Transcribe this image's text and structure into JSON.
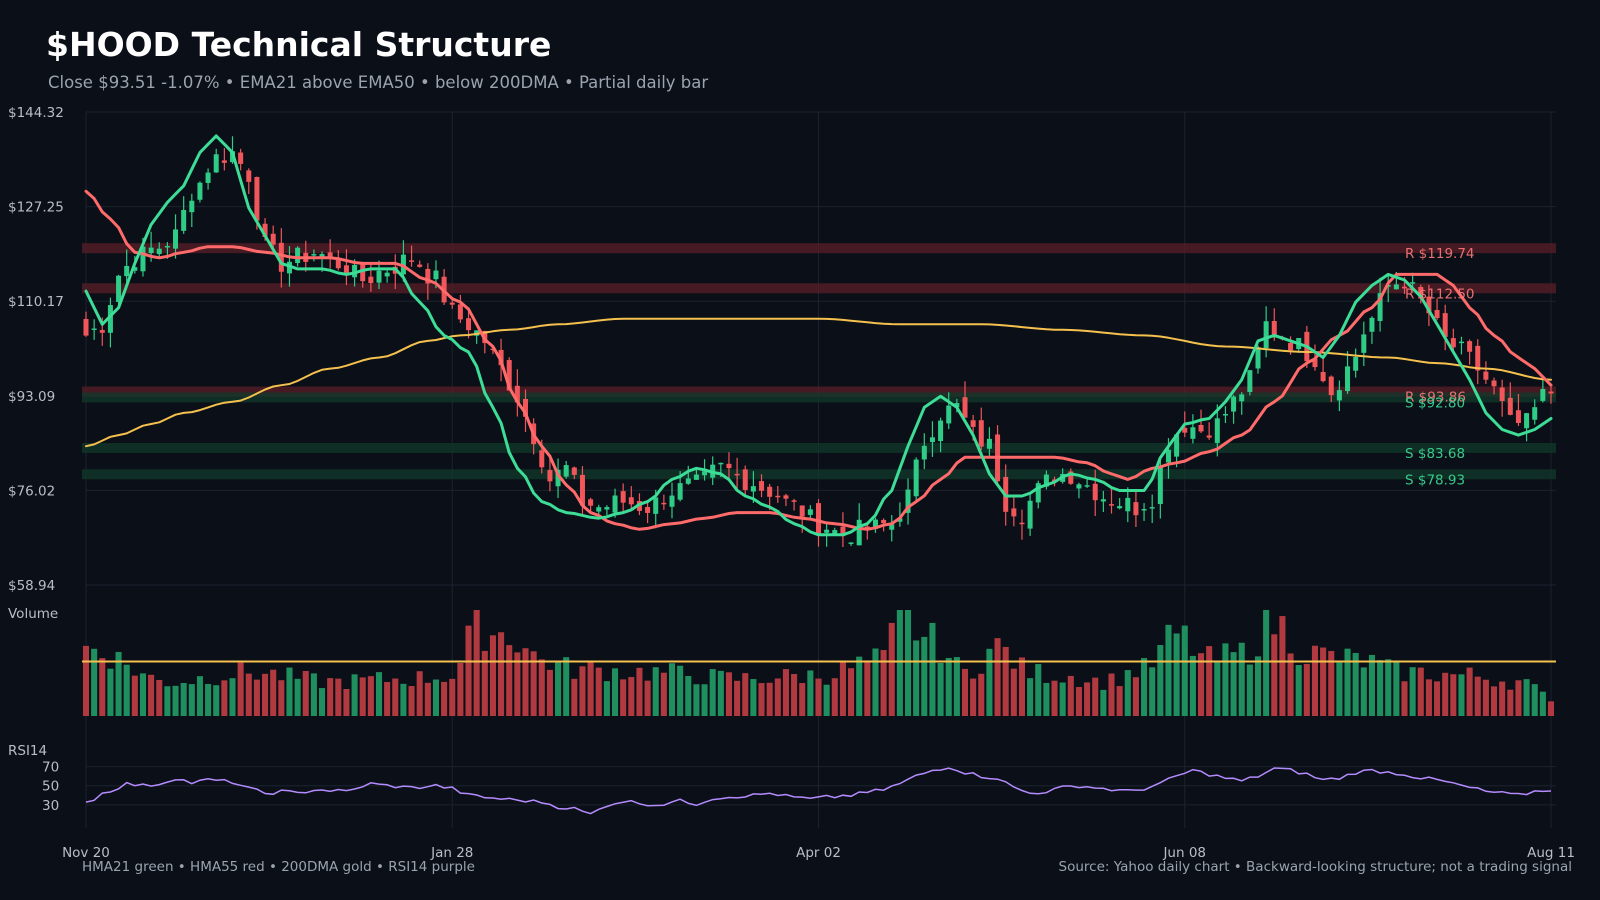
{
  "header": {
    "title": "$HOOD Technical Structure",
    "subtitle": "Close $93.51  -1.07%  •  EMA21 above EMA50 • below 200DMA  •  Partial daily bar"
  },
  "footer": {
    "legend_text": "HMA21 green • HMA55 red • 200DMA gold  •  RSI14 purple",
    "source_text": "Source: Yahoo daily chart • Backward-looking structure; not a trading signal"
  },
  "colors": {
    "background": "#0b0f17",
    "up": "#2ecc87",
    "down": "#f0565a",
    "hma21": "#3ddc97",
    "hma55": "#ff6b6b",
    "dma200": "#f5c14e",
    "rsi": "#b48cff",
    "resistance": "#ff7a7a",
    "support": "#3ddc97",
    "grid": "#1c2230"
  },
  "chart_data": {
    "type": "candlestick",
    "price_axis": {
      "ticks": [
        144.32,
        127.25,
        110.17,
        93.09,
        76.02,
        58.94
      ],
      "tick_labels": [
        "$144.32",
        "$127.25",
        "$110.17",
        "$93.09",
        "$76.02",
        "$58.94"
      ],
      "range": [
        58.94,
        144.32
      ]
    },
    "x_axis": {
      "tick_labels": [
        "Nov 20",
        "Jan 28",
        "Apr 02",
        "Jun 08",
        "Aug 11"
      ],
      "tick_indices": [
        0,
        45,
        90,
        135,
        180
      ],
      "count": 181
    },
    "volume_panel": {
      "label": "Volume"
    },
    "rsi_panel": {
      "label": "RSI14",
      "ticks": [
        70,
        50,
        30
      ],
      "range": [
        10,
        80
      ]
    },
    "levels": [
      {
        "kind": "resistance",
        "price": 119.74,
        "label": "R $119.74"
      },
      {
        "kind": "resistance",
        "price": 112.5,
        "label": "R $112.50"
      },
      {
        "kind": "resistance",
        "price": 93.86,
        "label": "R $93.86"
      },
      {
        "kind": "support",
        "price": 92.8,
        "label": "S $92.80"
      },
      {
        "kind": "support",
        "price": 83.68,
        "label": "S $83.68"
      },
      {
        "kind": "support",
        "price": 78.93,
        "label": "S $78.93"
      }
    ],
    "close_anchors": [
      [
        0,
        104
      ],
      [
        2,
        106
      ],
      [
        4,
        115
      ],
      [
        6,
        118
      ],
      [
        9,
        120
      ],
      [
        11,
        122
      ],
      [
        13,
        130
      ],
      [
        16,
        136
      ],
      [
        18,
        137
      ],
      [
        20,
        133
      ],
      [
        22,
        120
      ],
      [
        24,
        117
      ],
      [
        26,
        118
      ],
      [
        28,
        119
      ],
      [
        31,
        117
      ],
      [
        34,
        114
      ],
      [
        37,
        116
      ],
      [
        40,
        118
      ],
      [
        43,
        114
      ],
      [
        45,
        108
      ],
      [
        47,
        106
      ],
      [
        49,
        103
      ],
      [
        51,
        98
      ],
      [
        53,
        93
      ],
      [
        55,
        86
      ],
      [
        57,
        78
      ],
      [
        59,
        80
      ],
      [
        61,
        74
      ],
      [
        63,
        73
      ],
      [
        66,
        74
      ],
      [
        69,
        73
      ],
      [
        72,
        76
      ],
      [
        75,
        77
      ],
      [
        78,
        80
      ],
      [
        81,
        78
      ],
      [
        84,
        76
      ],
      [
        87,
        73
      ],
      [
        90,
        70
      ],
      [
        93,
        68
      ],
      [
        96,
        69
      ],
      [
        99,
        70
      ],
      [
        101,
        75
      ],
      [
        103,
        85
      ],
      [
        105,
        90
      ],
      [
        107,
        91
      ],
      [
        109,
        86
      ],
      [
        111,
        84
      ],
      [
        113,
        74
      ],
      [
        115,
        72
      ],
      [
        117,
        76
      ],
      [
        119,
        79
      ],
      [
        121,
        79
      ],
      [
        123,
        77
      ],
      [
        125,
        75
      ],
      [
        127,
        74
      ],
      [
        129,
        73
      ],
      [
        131,
        75
      ],
      [
        133,
        85
      ],
      [
        135,
        88
      ],
      [
        137,
        87
      ],
      [
        139,
        88
      ],
      [
        141,
        92
      ],
      [
        143,
        96
      ],
      [
        145,
        106
      ],
      [
        147,
        104
      ],
      [
        149,
        102
      ],
      [
        151,
        100
      ],
      [
        153,
        94
      ],
      [
        155,
        98
      ],
      [
        158,
        107
      ],
      [
        160,
        113
      ],
      [
        162,
        114
      ],
      [
        163,
        112
      ],
      [
        165,
        108
      ],
      [
        167,
        103
      ],
      [
        169,
        101
      ],
      [
        171,
        98
      ],
      [
        173,
        94
      ],
      [
        175,
        88
      ],
      [
        177,
        88
      ],
      [
        179,
        93
      ],
      [
        180,
        93.51
      ]
    ],
    "hma21_anchors": [
      [
        0,
        112
      ],
      [
        2,
        106
      ],
      [
        4,
        109
      ],
      [
        6,
        117
      ],
      [
        8,
        124
      ],
      [
        10,
        128
      ],
      [
        12,
        131
      ],
      [
        14,
        137
      ],
      [
        16,
        140
      ],
      [
        18,
        137
      ],
      [
        20,
        127
      ],
      [
        22,
        122
      ],
      [
        24,
        117
      ],
      [
        26,
        116
      ],
      [
        29,
        116
      ],
      [
        32,
        115
      ],
      [
        35,
        116
      ],
      [
        38,
        116
      ],
      [
        41,
        110
      ],
      [
        44,
        104
      ],
      [
        47,
        101
      ],
      [
        50,
        91
      ],
      [
        53,
        80
      ],
      [
        56,
        74
      ],
      [
        59,
        72
      ],
      [
        63,
        71
      ],
      [
        66,
        72
      ],
      [
        69,
        74
      ],
      [
        72,
        78
      ],
      [
        75,
        80
      ],
      [
        78,
        79
      ],
      [
        81,
        75
      ],
      [
        84,
        73
      ],
      [
        87,
        70
      ],
      [
        90,
        68
      ],
      [
        93,
        68
      ],
      [
        96,
        70
      ],
      [
        99,
        76
      ],
      [
        101,
        84
      ],
      [
        103,
        91
      ],
      [
        105,
        93
      ],
      [
        107,
        91
      ],
      [
        109,
        86
      ],
      [
        111,
        79
      ],
      [
        113,
        75
      ],
      [
        115,
        75
      ],
      [
        118,
        77
      ],
      [
        121,
        79
      ],
      [
        124,
        78
      ],
      [
        127,
        76
      ],
      [
        130,
        76
      ],
      [
        133,
        84
      ],
      [
        135,
        88
      ],
      [
        138,
        89
      ],
      [
        140,
        92
      ],
      [
        142,
        96
      ],
      [
        144,
        103
      ],
      [
        146,
        104
      ],
      [
        148,
        103
      ],
      [
        150,
        102
      ],
      [
        152,
        100
      ],
      [
        154,
        104
      ],
      [
        156,
        110
      ],
      [
        158,
        113
      ],
      [
        160,
        115
      ],
      [
        162,
        114
      ],
      [
        164,
        111
      ],
      [
        166,
        106
      ],
      [
        168,
        101
      ],
      [
        170,
        96
      ],
      [
        172,
        90
      ],
      [
        174,
        87
      ],
      [
        176,
        86
      ],
      [
        178,
        87
      ],
      [
        180,
        89
      ]
    ],
    "hma55_anchors": [
      [
        0,
        130
      ],
      [
        3,
        125
      ],
      [
        6,
        119
      ],
      [
        9,
        118
      ],
      [
        12,
        119
      ],
      [
        15,
        120
      ],
      [
        18,
        120
      ],
      [
        22,
        119
      ],
      [
        26,
        118
      ],
      [
        30,
        118
      ],
      [
        34,
        117
      ],
      [
        38,
        117
      ],
      [
        42,
        114
      ],
      [
        46,
        110
      ],
      [
        50,
        102
      ],
      [
        53,
        92
      ],
      [
        56,
        84
      ],
      [
        59,
        77
      ],
      [
        62,
        72
      ],
      [
        65,
        70
      ],
      [
        68,
        69
      ],
      [
        72,
        70
      ],
      [
        76,
        71
      ],
      [
        80,
        72
      ],
      [
        84,
        72
      ],
      [
        88,
        71
      ],
      [
        92,
        70
      ],
      [
        96,
        69
      ],
      [
        99,
        70
      ],
      [
        102,
        74
      ],
      [
        105,
        78
      ],
      [
        108,
        82
      ],
      [
        111,
        82
      ],
      [
        115,
        82
      ],
      [
        119,
        82
      ],
      [
        123,
        81
      ],
      [
        126,
        79
      ],
      [
        128,
        78
      ],
      [
        131,
        80
      ],
      [
        134,
        81
      ],
      [
        138,
        83
      ],
      [
        142,
        86
      ],
      [
        146,
        92
      ],
      [
        150,
        99
      ],
      [
        154,
        104
      ],
      [
        158,
        109
      ],
      [
        161,
        115
      ],
      [
        164,
        115
      ],
      [
        166,
        115
      ],
      [
        168,
        113
      ],
      [
        170,
        109
      ],
      [
        173,
        104
      ],
      [
        176,
        100
      ],
      [
        178,
        98
      ],
      [
        180,
        95
      ]
    ],
    "dma200_anchors": [
      [
        0,
        84
      ],
      [
        4,
        86
      ],
      [
        8,
        88
      ],
      [
        12,
        90
      ],
      [
        18,
        92
      ],
      [
        24,
        95
      ],
      [
        30,
        98
      ],
      [
        36,
        100
      ],
      [
        42,
        103
      ],
      [
        46,
        104
      ],
      [
        52,
        105
      ],
      [
        58,
        106
      ],
      [
        66,
        107
      ],
      [
        74,
        107
      ],
      [
        82,
        107
      ],
      [
        90,
        107
      ],
      [
        100,
        106
      ],
      [
        110,
        106
      ],
      [
        120,
        105
      ],
      [
        130,
        104
      ],
      [
        140,
        102
      ],
      [
        150,
        101
      ],
      [
        160,
        100
      ],
      [
        166,
        99
      ],
      [
        172,
        98
      ],
      [
        180,
        96
      ]
    ],
    "rsi_anchors": [
      [
        0,
        33
      ],
      [
        3,
        45
      ],
      [
        5,
        52
      ],
      [
        7,
        50
      ],
      [
        9,
        52
      ],
      [
        11,
        58
      ],
      [
        13,
        53
      ],
      [
        15,
        56
      ],
      [
        18,
        54
      ],
      [
        20,
        47
      ],
      [
        22,
        42
      ],
      [
        24,
        44
      ],
      [
        26,
        42
      ],
      [
        28,
        46
      ],
      [
        30,
        45
      ],
      [
        32,
        44
      ],
      [
        35,
        52
      ],
      [
        37,
        50
      ],
      [
        40,
        48
      ],
      [
        43,
        50
      ],
      [
        45,
        47
      ],
      [
        47,
        40
      ],
      [
        50,
        37
      ],
      [
        53,
        35
      ],
      [
        56,
        33
      ],
      [
        58,
        28
      ],
      [
        60,
        26
      ],
      [
        62,
        20
      ],
      [
        64,
        30
      ],
      [
        66,
        34
      ],
      [
        68,
        32
      ],
      [
        70,
        30
      ],
      [
        73,
        34
      ],
      [
        75,
        31
      ],
      [
        77,
        37
      ],
      [
        80,
        39
      ],
      [
        82,
        40
      ],
      [
        84,
        42
      ],
      [
        87,
        38
      ],
      [
        89,
        36
      ],
      [
        91,
        38
      ],
      [
        94,
        40
      ],
      [
        96,
        43
      ],
      [
        98,
        46
      ],
      [
        100,
        52
      ],
      [
        102,
        60
      ],
      [
        104,
        66
      ],
      [
        106,
        70
      ],
      [
        108,
        64
      ],
      [
        110,
        60
      ],
      [
        112,
        58
      ],
      [
        114,
        48
      ],
      [
        116,
        42
      ],
      [
        118,
        44
      ],
      [
        120,
        48
      ],
      [
        122,
        50
      ],
      [
        124,
        48
      ],
      [
        126,
        46
      ],
      [
        128,
        44
      ],
      [
        130,
        47
      ],
      [
        132,
        52
      ],
      [
        134,
        60
      ],
      [
        136,
        66
      ],
      [
        138,
        62
      ],
      [
        140,
        58
      ],
      [
        142,
        55
      ],
      [
        144,
        60
      ],
      [
        146,
        68
      ],
      [
        148,
        66
      ],
      [
        150,
        62
      ],
      [
        152,
        56
      ],
      [
        154,
        58
      ],
      [
        156,
        64
      ],
      [
        158,
        66
      ],
      [
        160,
        64
      ],
      [
        162,
        62
      ],
      [
        164,
        58
      ],
      [
        166,
        56
      ],
      [
        168,
        52
      ],
      [
        170,
        48
      ],
      [
        172,
        44
      ],
      [
        174,
        42
      ],
      [
        176,
        40
      ],
      [
        178,
        44
      ],
      [
        180,
        46
      ]
    ],
    "volume_relative_anchors": [
      [
        0,
        1.1
      ],
      [
        10,
        0.55
      ],
      [
        20,
        0.7
      ],
      [
        30,
        0.55
      ],
      [
        40,
        0.6
      ],
      [
        45,
        0.65
      ],
      [
        48,
        1.4
      ],
      [
        52,
        1.3
      ],
      [
        56,
        0.9
      ],
      [
        60,
        0.75
      ],
      [
        70,
        0.7
      ],
      [
        80,
        0.6
      ],
      [
        90,
        0.65
      ],
      [
        98,
        0.9
      ],
      [
        100,
        1.6
      ],
      [
        104,
        1.2
      ],
      [
        108,
        0.7
      ],
      [
        112,
        1.1
      ],
      [
        116,
        0.7
      ],
      [
        120,
        0.65
      ],
      [
        125,
        0.55
      ],
      [
        130,
        0.75
      ],
      [
        134,
        1.3
      ],
      [
        138,
        0.9
      ],
      [
        142,
        1.0
      ],
      [
        146,
        1.5
      ],
      [
        150,
        1.0
      ],
      [
        156,
        0.9
      ],
      [
        162,
        0.7
      ],
      [
        170,
        0.65
      ],
      [
        176,
        0.55
      ],
      [
        180,
        0.3
      ]
    ],
    "volume_average_level": 0.5
  }
}
